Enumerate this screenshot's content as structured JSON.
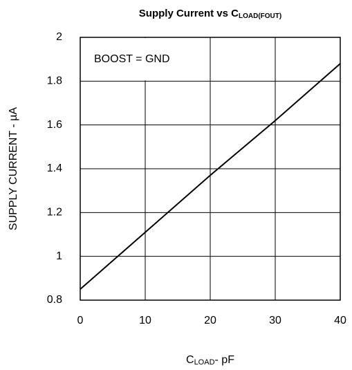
{
  "chart_data": {
    "type": "line",
    "title": {
      "text": "Supply Current vs C",
      "subscript": "LOAD(FOUT)"
    },
    "x_label": {
      "text": "C",
      "subscript": "LOAD",
      "suffix": "- pF"
    },
    "y_label": "SUPPLY CURRENT - µA",
    "annotation": "BOOST = GND",
    "x": [
      0,
      10,
      20,
      30,
      40
    ],
    "series": [
      {
        "name": "BOOST = GND",
        "color": "#000000",
        "values": [
          0.85,
          1.11,
          1.37,
          1.62,
          1.88
        ]
      }
    ],
    "xlim": [
      0,
      40
    ],
    "xticks": [
      0,
      10,
      20,
      30,
      40
    ],
    "ylim": [
      0.8,
      2
    ],
    "yticks": [
      0.8,
      1,
      1.2,
      1.4,
      1.6,
      1.8,
      2
    ],
    "grid": true
  }
}
